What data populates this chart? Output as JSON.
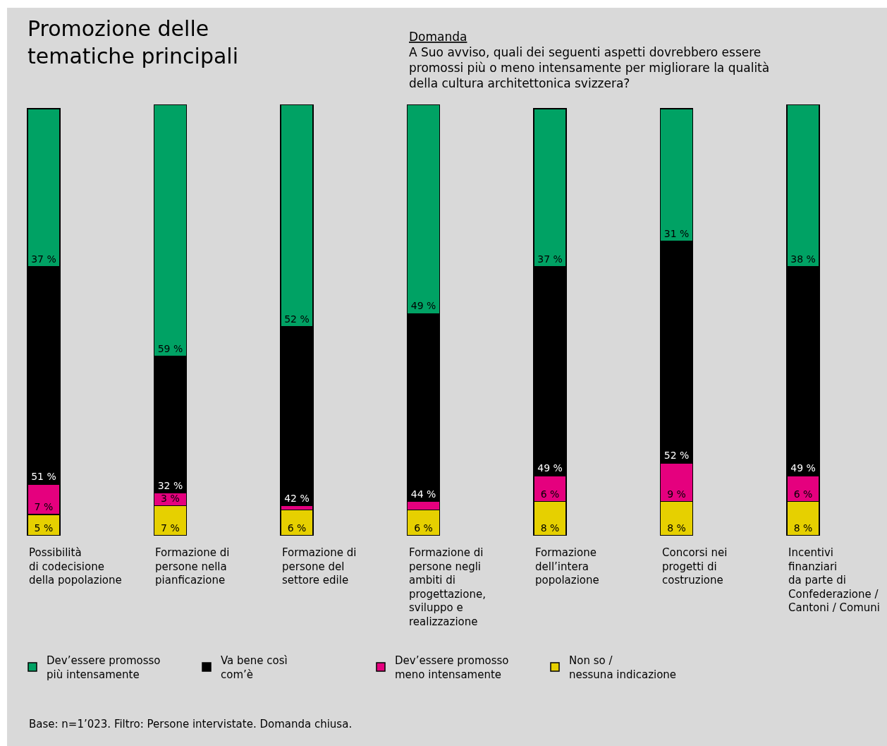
{
  "chart_data": {
    "type": "bar",
    "stacked": true,
    "title": "Promozione delle\ntematiche principali",
    "subtitle": "A Suo avviso, quali dei seguenti aspetti dovrebbero essere\npromossi più o meno intensamente per migliorare la qualità\ndella cultura architettonica svizzera?",
    "annotations": [
      "Domanda",
      "Base: n=1’023. Filtro: Persone intervistate. Domanda chiusa."
    ],
    "categories": [
      "Possibilità\ndi codecisione\ndella popolazione",
      "Formazione di\npersone nella\npianficazione",
      "Formazione di\npersone del\nsettore edile",
      "Formazione di\npersone negli\nambiti di\nprogettazione,\nsviluppo e\nrealizzazione",
      "Formazione\ndell’intera\npopolazione",
      "Concorsi nei\nprogetti di\ncostruzione",
      "Incentivi\nfinanziari\nda parte di\nConfederazione /\nCantoni / Comuni"
    ],
    "series": [
      {
        "name": "Non so /\nnessuna indicazione",
        "color": "#e6d000",
        "values": [
          5,
          7,
          6,
          6,
          8,
          8,
          8
        ],
        "value_labels": [
          "5 %",
          "7 %",
          "6 %",
          "6 %",
          "8 %",
          "8 %",
          "8 %"
        ]
      },
      {
        "name": "Dev’essere promosso\nmeno intensamente",
        "color": "#e5007e",
        "values": [
          7,
          3,
          1,
          2,
          6,
          9,
          6
        ],
        "value_labels": [
          "7 %",
          "3 %",
          null,
          null,
          "6 %",
          "9 %",
          "6 %"
        ]
      },
      {
        "name": "Va bene così\ncom’è",
        "color": "#000000",
        "values": [
          51,
          32,
          42,
          44,
          49,
          52,
          49
        ],
        "value_labels": [
          "51 %",
          "32 %",
          "42 %",
          "44 %",
          "49 %",
          "52 %",
          "49 %"
        ]
      },
      {
        "name": "Dev’essere promosso\npiù intensamente",
        "color": "#00a264",
        "values": [
          37,
          59,
          52,
          49,
          37,
          31,
          38
        ],
        "value_labels": [
          "37 %",
          "59 %",
          "52 %",
          "49 %",
          "37 %",
          "31 %",
          "38 %"
        ]
      }
    ],
    "legend": "bottom",
    "tick_labels": "x"
  }
}
